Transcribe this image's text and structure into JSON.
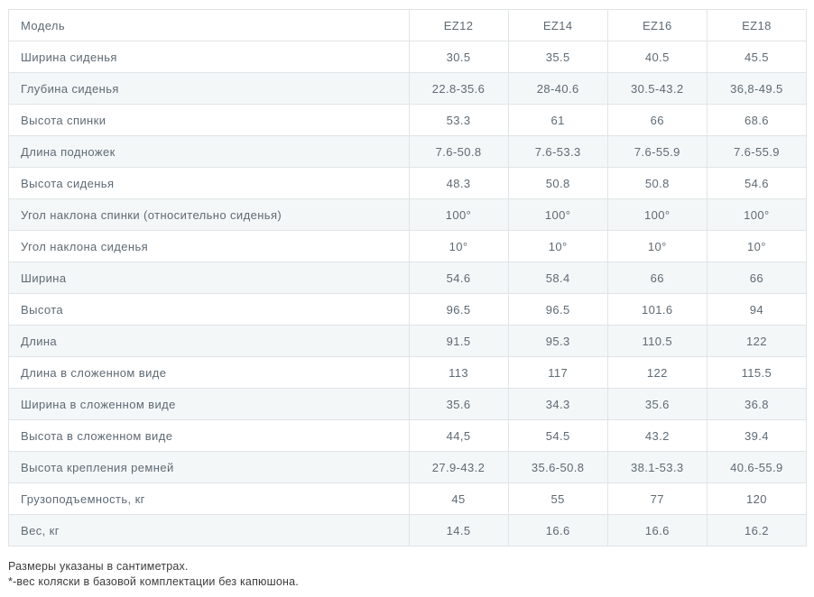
{
  "chart_data": {
    "type": "table",
    "title": "",
    "header": {
      "label": "Модель",
      "models": [
        "EZ12",
        "EZ14",
        "EZ16",
        "EZ18"
      ]
    },
    "rows": [
      {
        "label": "Ширина сиденья",
        "values": [
          "30.5",
          "35.5",
          "40.5",
          "45.5"
        ]
      },
      {
        "label": "Глубина сиденья",
        "values": [
          "22.8-35.6",
          "28-40.6",
          "30.5-43.2",
          "36,8-49.5"
        ]
      },
      {
        "label": "Высота спинки",
        "values": [
          "53.3",
          "61",
          "66",
          "68.6"
        ]
      },
      {
        "label": "Длина подножек",
        "values": [
          "7.6-50.8",
          "7.6-53.3",
          "7.6-55.9",
          "7.6-55.9"
        ]
      },
      {
        "label": "Высота сиденья",
        "values": [
          "48.3",
          "50.8",
          "50.8",
          "54.6"
        ]
      },
      {
        "label": "Угол наклона спинки (относительно сиденья)",
        "values": [
          "100°",
          "100°",
          "100°",
          "100°"
        ]
      },
      {
        "label": "Угол наклона сиденья",
        "values": [
          "10°",
          "10°",
          "10°",
          "10°"
        ]
      },
      {
        "label": "Ширина",
        "values": [
          "54.6",
          "58.4",
          "66",
          "66"
        ]
      },
      {
        "label": "Высота",
        "values": [
          "96.5",
          "96.5",
          "101.6",
          "94"
        ]
      },
      {
        "label": "Длина",
        "values": [
          "91.5",
          "95.3",
          "110.5",
          "122"
        ]
      },
      {
        "label": "Длина в сложенном виде",
        "values": [
          "113",
          "117",
          "122",
          "115.5"
        ]
      },
      {
        "label": "Ширина в сложенном виде",
        "values": [
          "35.6",
          "34.3",
          "35.6",
          "36.8"
        ]
      },
      {
        "label": "Высота в сложенном виде",
        "values": [
          "44,5",
          "54.5",
          "43.2",
          "39.4"
        ]
      },
      {
        "label": "Высота крепления ремней",
        "values": [
          "27.9-43.2",
          "35.6-50.8",
          "38.1-53.3",
          "40.6-55.9"
        ]
      },
      {
        "label": "Грузоподъемность, кг",
        "values": [
          "45",
          "55",
          "77",
          "120"
        ]
      },
      {
        "label": "Вес, кг",
        "values": [
          "14.5",
          "16.6",
          "16.6",
          "16.2"
        ]
      }
    ],
    "footnotes": [
      "Размеры указаны в сантиметрах.",
      "*-вес коляски в базовой комплектации без капюшона."
    ]
  },
  "colors": {
    "border": "#e1e4e6",
    "stripe": "#f4f7f8",
    "cell_text": "#5f6a73",
    "note_text": "#3c3c3c"
  }
}
